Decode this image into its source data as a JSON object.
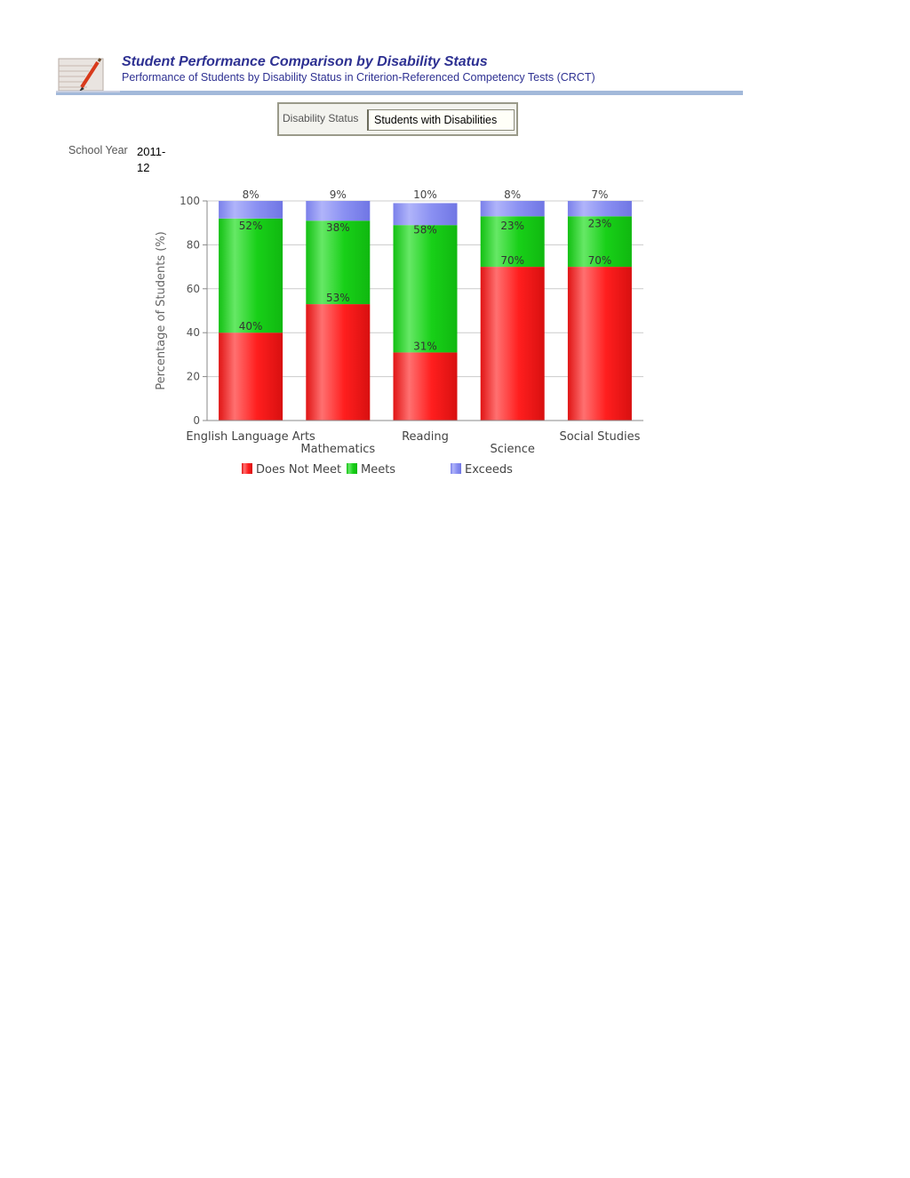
{
  "header": {
    "title": "Student Performance Comparison by Disability Status",
    "subtitle": "Performance of Students by Disability Status in Criterion-Referenced Competency Tests (CRCT)",
    "icon": "notebook-pencil-icon"
  },
  "filters": {
    "disability_label": "Disability Status",
    "disability_value": "Students with Disabilities",
    "year_label": "School Year",
    "year_value": "2011-12"
  },
  "colors": {
    "does_not_meet": "#ff2020",
    "meets": "#1fd21f",
    "exceeds": "#8a8ff0",
    "title": "#2e3192"
  },
  "chart_data": {
    "type": "bar",
    "stacked": true,
    "categories": [
      "English Language Arts",
      "Mathematics",
      "Reading",
      "Science",
      "Social Studies"
    ],
    "series": [
      {
        "name": "Does Not Meet",
        "values": [
          40,
          53,
          31,
          70,
          70
        ],
        "labels": [
          "40%",
          "53%",
          "31%",
          "70%",
          "70%"
        ]
      },
      {
        "name": "Meets",
        "values": [
          52,
          38,
          58,
          23,
          23
        ],
        "labels": [
          "52%",
          "38%",
          "58%",
          "23%",
          "23%"
        ]
      },
      {
        "name": "Exceeds",
        "values": [
          8,
          9,
          10,
          8,
          7
        ],
        "labels": [
          "8%",
          "9%",
          "10%",
          "8%",
          "7%"
        ]
      }
    ],
    "ylabel": "Percentage of Students (%)",
    "xlabel": "",
    "ylim": [
      0,
      100
    ],
    "yticks": [
      0,
      20,
      40,
      60,
      80,
      100
    ],
    "grid": true,
    "legend_position": "bottom"
  }
}
